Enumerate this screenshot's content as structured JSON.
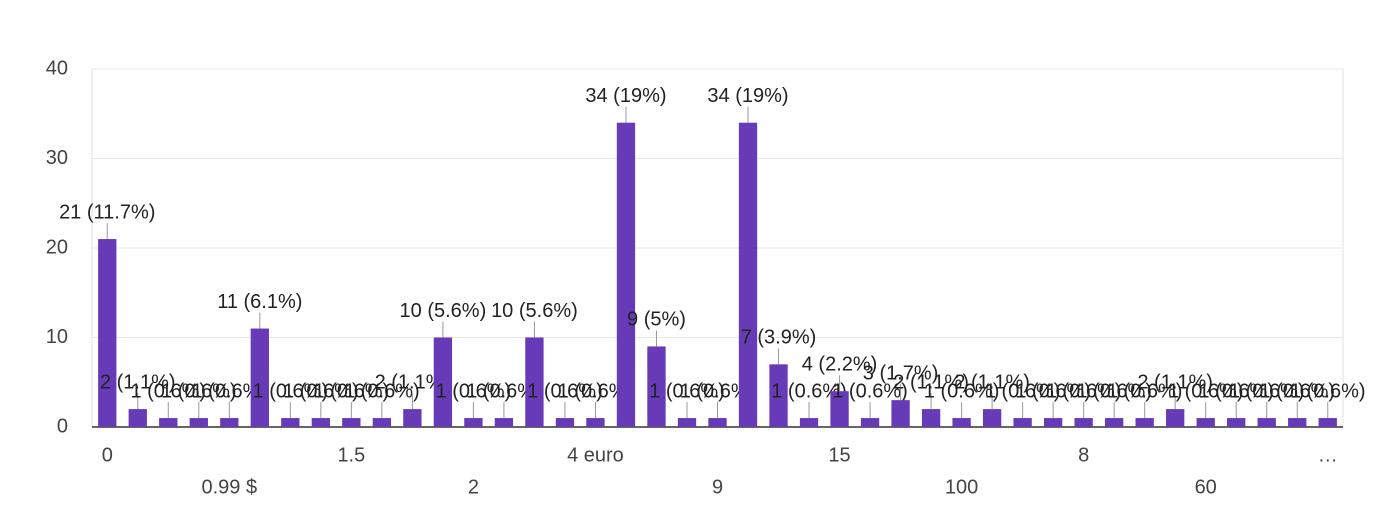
{
  "chart_data": {
    "type": "bar",
    "categories": [
      "0",
      null,
      null,
      null,
      "0.99 $",
      null,
      null,
      null,
      "1.5",
      null,
      null,
      null,
      "2",
      null,
      null,
      null,
      "4 euro",
      null,
      null,
      null,
      "9",
      null,
      null,
      null,
      "15",
      null,
      null,
      null,
      "100",
      null,
      null,
      null,
      "8",
      null,
      null,
      null,
      "60",
      null,
      null,
      null,
      "…"
    ],
    "values": [
      21,
      2,
      1,
      1,
      1,
      11,
      1,
      1,
      1,
      1,
      2,
      10,
      1,
      1,
      10,
      1,
      1,
      34,
      9,
      1,
      1,
      34,
      7,
      1,
      4,
      1,
      3,
      2,
      1,
      2,
      1,
      1,
      1,
      1,
      1,
      2,
      1,
      1,
      1,
      1,
      1
    ],
    "value_labels": [
      "21 (11.7%)",
      "2 (1.1%)",
      "1 (0.6%)",
      "1 (0.6%)",
      "1 (0.6%)",
      "11 (6.1%)",
      "1 (0.6%)",
      "1 (0.6%)",
      "1 (0.6%)",
      "1 (0.6%)",
      "2 (1.1%)",
      "10 (5.6%)",
      "1 (0.6%)",
      "1 (0.6%)",
      "10 (5.6%)",
      "1 (0.6%)",
      "1 (0.6%)",
      "34 (19%)",
      "9 (5%)",
      "1 (0.6%)",
      "1 (0.6%)",
      "34 (19%)",
      "7 (3.9%)",
      "1 (0.6%)",
      "4 (2.2%)",
      "1 (0.6%)",
      "3 (1.7%)",
      "2 (1.1%)",
      "1 (0.6%)",
      "2 (1.1%)",
      "1 (0.6%)",
      "1 (0.6%)",
      "1 (0.6%)",
      "1 (0.6%)",
      "1 (0.6%)",
      "2 (1.1%)",
      "1 (0.6%)",
      "1 (0.6%)",
      "1 (0.6%)",
      "1 (0.6%)",
      "1 (0.6%)"
    ],
    "color": "#673ab7",
    "ylim": [
      0,
      40
    ],
    "yticks": [
      0,
      10,
      20,
      30,
      40
    ],
    "grid": true
  }
}
